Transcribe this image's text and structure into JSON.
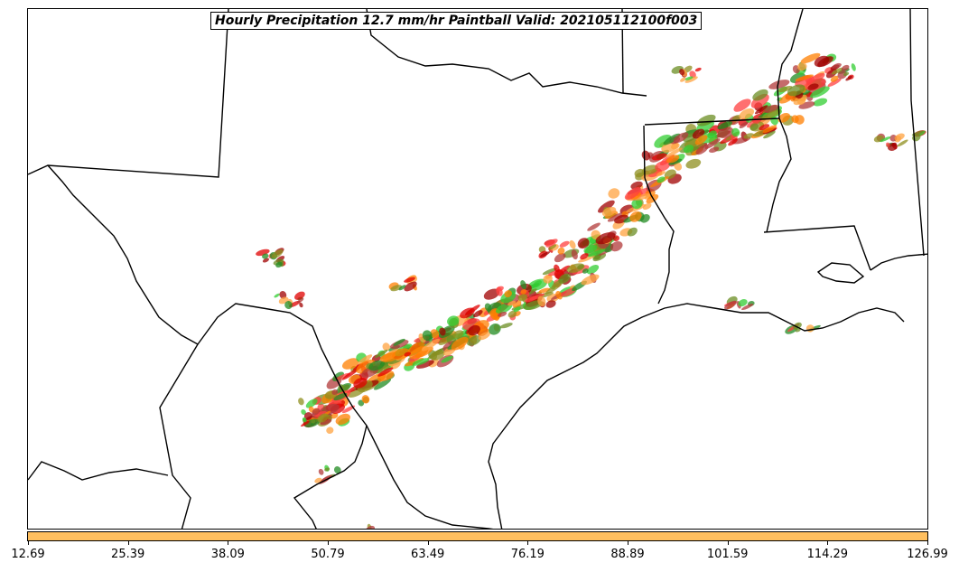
{
  "title": "Hourly Precipitation 12.7 mm/hr Paintball Valid: 202105112100f003",
  "colorbar": {
    "color": "#ffbf5f",
    "ticks": [
      "12.69",
      "25.39",
      "38.09",
      "50.79",
      "63.49",
      "76.19",
      "88.89",
      "101.59",
      "114.29",
      "126.99"
    ]
  },
  "member_colors": [
    "#ff7f00",
    "#ffa340",
    "#e00000",
    "#ff4040",
    "#a00000",
    "#b23a3a",
    "#228b22",
    "#32cd32",
    "#8f8f1f",
    "#6b8e23"
  ],
  "map": {
    "boundaries": "black",
    "background": "#ffffff"
  }
}
